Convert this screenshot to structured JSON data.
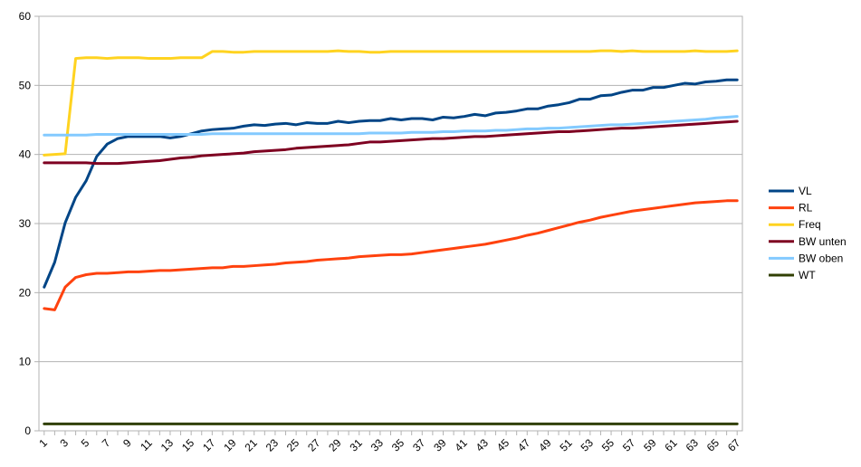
{
  "chart_data": {
    "type": "line",
    "title": "",
    "xlabel": "",
    "ylabel": "",
    "ylim": [
      0,
      60
    ],
    "y_ticks": [
      0,
      10,
      20,
      30,
      40,
      50,
      60
    ],
    "x": [
      1,
      2,
      3,
      4,
      5,
      6,
      7,
      8,
      9,
      10,
      11,
      12,
      13,
      14,
      15,
      16,
      17,
      18,
      19,
      20,
      21,
      22,
      23,
      24,
      25,
      26,
      27,
      28,
      29,
      30,
      31,
      32,
      33,
      34,
      35,
      36,
      37,
      38,
      39,
      40,
      41,
      42,
      43,
      44,
      45,
      46,
      47,
      48,
      49,
      50,
      51,
      52,
      53,
      54,
      55,
      56,
      57,
      58,
      59,
      60,
      61,
      62,
      63,
      64,
      65,
      66,
      67
    ],
    "x_tick_labels": [
      "1",
      "3",
      "5",
      "7",
      "9",
      "11",
      "13",
      "15",
      "17",
      "19",
      "21",
      "23",
      "25",
      "27",
      "29",
      "31",
      "33",
      "35",
      "37",
      "39",
      "41",
      "43",
      "45",
      "47",
      "49",
      "51",
      "53",
      "55",
      "57",
      "59",
      "61",
      "63",
      "65",
      "67"
    ],
    "grid": "horizontal",
    "legend_position": "right",
    "series": [
      {
        "name": "VL",
        "color": "#004586",
        "values": [
          20.8,
          24.4,
          30.1,
          33.8,
          36.2,
          39.7,
          41.5,
          42.3,
          42.6,
          42.6,
          42.6,
          42.6,
          42.4,
          42.6,
          43.0,
          43.4,
          43.6,
          43.7,
          43.8,
          44.1,
          44.3,
          44.2,
          44.4,
          44.5,
          44.3,
          44.6,
          44.5,
          44.5,
          44.8,
          44.6,
          44.8,
          44.9,
          44.9,
          45.2,
          45.0,
          45.2,
          45.2,
          45.0,
          45.4,
          45.3,
          45.5,
          45.8,
          45.6,
          46.0,
          46.1,
          46.3,
          46.6,
          46.6,
          47.0,
          47.2,
          47.5,
          48.0,
          48.0,
          48.5,
          48.6,
          49.0,
          49.3,
          49.3,
          49.7,
          49.7,
          50.0,
          50.3,
          50.2,
          50.5,
          50.6,
          50.8,
          50.8
        ]
      },
      {
        "name": "RL",
        "color": "#ff420e",
        "values": [
          17.7,
          17.5,
          20.8,
          22.2,
          22.6,
          22.8,
          22.8,
          22.9,
          23.0,
          23.0,
          23.1,
          23.2,
          23.2,
          23.3,
          23.4,
          23.5,
          23.6,
          23.6,
          23.8,
          23.8,
          23.9,
          24.0,
          24.1,
          24.3,
          24.4,
          24.5,
          24.7,
          24.8,
          24.9,
          25.0,
          25.2,
          25.3,
          25.4,
          25.5,
          25.5,
          25.6,
          25.8,
          26.0,
          26.2,
          26.4,
          26.6,
          26.8,
          27.0,
          27.3,
          27.6,
          27.9,
          28.3,
          28.6,
          29.0,
          29.4,
          29.8,
          30.2,
          30.5,
          30.9,
          31.2,
          31.5,
          31.8,
          32.0,
          32.2,
          32.4,
          32.6,
          32.8,
          33.0,
          33.1,
          33.2,
          33.3,
          33.3
        ]
      },
      {
        "name": "Freq",
        "color": "#ffd320",
        "values": [
          39.9,
          40.0,
          40.1,
          53.9,
          54.0,
          54.0,
          53.9,
          54.0,
          54.0,
          54.0,
          53.9,
          53.9,
          53.9,
          54.0,
          54.0,
          54.0,
          54.9,
          54.9,
          54.8,
          54.8,
          54.9,
          54.9,
          54.9,
          54.9,
          54.9,
          54.9,
          54.9,
          54.9,
          55.0,
          54.9,
          54.9,
          54.8,
          54.8,
          54.9,
          54.9,
          54.9,
          54.9,
          54.9,
          54.9,
          54.9,
          54.9,
          54.9,
          54.9,
          54.9,
          54.9,
          54.9,
          54.9,
          54.9,
          54.9,
          54.9,
          54.9,
          54.9,
          54.9,
          55.0,
          55.0,
          54.9,
          55.0,
          54.9,
          54.9,
          54.9,
          54.9,
          54.9,
          55.0,
          54.9,
          54.9,
          54.9,
          55.0
        ]
      },
      {
        "name": "BW unten",
        "color": "#7e0021",
        "values": [
          38.8,
          38.8,
          38.8,
          38.8,
          38.8,
          38.7,
          38.7,
          38.7,
          38.8,
          38.9,
          39.0,
          39.1,
          39.3,
          39.5,
          39.6,
          39.8,
          39.9,
          40.0,
          40.1,
          40.2,
          40.4,
          40.5,
          40.6,
          40.7,
          40.9,
          41.0,
          41.1,
          41.2,
          41.3,
          41.4,
          41.6,
          41.8,
          41.8,
          41.9,
          42.0,
          42.1,
          42.2,
          42.3,
          42.3,
          42.4,
          42.5,
          42.6,
          42.6,
          42.7,
          42.8,
          42.9,
          43.0,
          43.1,
          43.2,
          43.3,
          43.3,
          43.4,
          43.5,
          43.6,
          43.7,
          43.8,
          43.8,
          43.9,
          44.0,
          44.1,
          44.2,
          44.3,
          44.4,
          44.5,
          44.6,
          44.7,
          44.8
        ]
      },
      {
        "name": "BW oben",
        "color": "#83caff",
        "values": [
          42.8,
          42.8,
          42.8,
          42.8,
          42.8,
          42.9,
          42.9,
          42.9,
          42.9,
          42.9,
          42.9,
          42.9,
          42.9,
          42.9,
          42.9,
          42.9,
          43.0,
          43.0,
          43.0,
          43.0,
          43.0,
          43.0,
          43.0,
          43.0,
          43.0,
          43.0,
          43.0,
          43.0,
          43.0,
          43.0,
          43.0,
          43.1,
          43.1,
          43.1,
          43.1,
          43.2,
          43.2,
          43.2,
          43.3,
          43.3,
          43.4,
          43.4,
          43.4,
          43.5,
          43.5,
          43.6,
          43.7,
          43.7,
          43.8,
          43.8,
          43.9,
          44.0,
          44.1,
          44.2,
          44.3,
          44.3,
          44.4,
          44.5,
          44.6,
          44.7,
          44.8,
          44.9,
          45.0,
          45.1,
          45.3,
          45.4,
          45.5
        ]
      },
      {
        "name": "WT",
        "color": "#314004",
        "values": [
          1,
          1,
          1,
          1,
          1,
          1,
          1,
          1,
          1,
          1,
          1,
          1,
          1,
          1,
          1,
          1,
          1,
          1,
          1,
          1,
          1,
          1,
          1,
          1,
          1,
          1,
          1,
          1,
          1,
          1,
          1,
          1,
          1,
          1,
          1,
          1,
          1,
          1,
          1,
          1,
          1,
          1,
          1,
          1,
          1,
          1,
          1,
          1,
          1,
          1,
          1,
          1,
          1,
          1,
          1,
          1,
          1,
          1,
          1,
          1,
          1,
          1,
          1,
          1,
          1,
          1,
          1
        ]
      }
    ]
  }
}
